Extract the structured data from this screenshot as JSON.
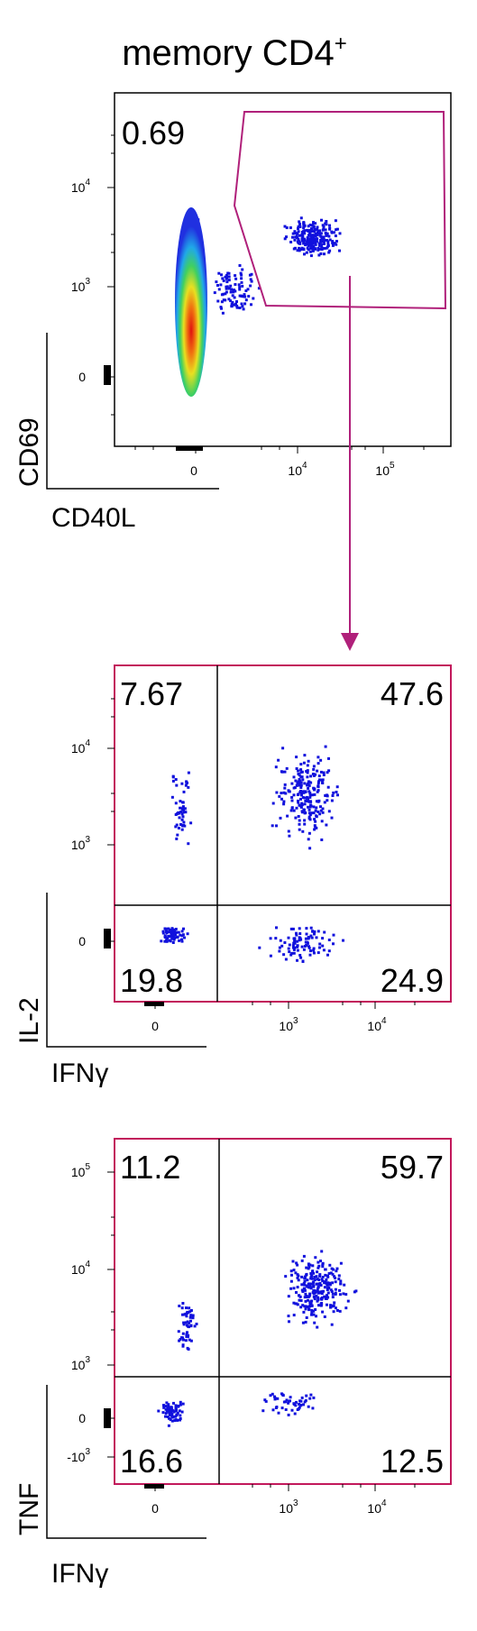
{
  "colors": {
    "frame": "#000000",
    "highlight_frame": "#c2185b",
    "gate": "#b0207a",
    "arrow": "#b0207a",
    "dots": "#1111dd",
    "quad_line": "#000000"
  },
  "title": {
    "main": "memory CD4",
    "superscript": "+"
  },
  "panels": [
    {
      "id": "cd40l-vs-cd69",
      "xlabel": "CD40L",
      "ylabel": "CD69",
      "x_ticks": [
        "0",
        "10",
        "10"
      ],
      "x_tick_exps": [
        "",
        "4",
        "5"
      ],
      "y_ticks": [
        "10",
        "10",
        "0"
      ],
      "y_tick_exps": [
        "4",
        "3",
        ""
      ],
      "gate_percentage": "0.69"
    },
    {
      "id": "ifng-vs-il2",
      "xlabel": "IFNγ",
      "ylabel": "IL-2",
      "x_ticks": [
        "0",
        "10",
        "10"
      ],
      "x_tick_exps": [
        "",
        "3",
        "4"
      ],
      "y_ticks": [
        "10",
        "10",
        "0"
      ],
      "y_tick_exps": [
        "4",
        "3",
        ""
      ],
      "quadrants": {
        "upper_left": "7.67",
        "upper_right": "47.6",
        "lower_left": "19.8",
        "lower_right": "24.9"
      }
    },
    {
      "id": "ifng-vs-tnf",
      "xlabel": "IFNγ",
      "ylabel": "TNF",
      "x_ticks": [
        "0",
        "10",
        "10"
      ],
      "x_tick_exps": [
        "",
        "3",
        "4"
      ],
      "y_ticks": [
        "10",
        "10",
        "10",
        "0",
        "-10"
      ],
      "y_tick_exps": [
        "5",
        "4",
        "3",
        "",
        "3"
      ],
      "quadrants": {
        "upper_left": "11.2",
        "upper_right": "59.7",
        "lower_left": "16.6",
        "lower_right": "12.5"
      }
    }
  ],
  "chart_data": [
    {
      "type": "scatter",
      "title": "memory CD4+",
      "xlabel": "CD40L",
      "ylabel": "CD69",
      "x_scale": "biexponential",
      "y_scale": "biexponential",
      "x_tick_labels": [
        "0",
        "10^4",
        "10^5"
      ],
      "y_tick_labels": [
        "0",
        "10^3",
        "10^4"
      ],
      "gate": {
        "shape": "polygon",
        "percentage": 0.69
      },
      "populations": [
        {
          "name": "",
          "x_center": 0,
          "y_range": [
            0,
            10000
          ],
          "description": "dense CD40L-negative column"
        },
        {
          "name": "",
          "x_range": [
            3000,
            40000
          ],
          "y_range": [
            1000,
            10000
          ],
          "description": "CD40L+ CD69+ gated events"
        }
      ]
    },
    {
      "type": "scatter",
      "xlabel": "IFNγ",
      "ylabel": "IL-2",
      "x_tick_labels": [
        "0",
        "10^3",
        "10^4"
      ],
      "y_tick_labels": [
        "0",
        "10^3",
        "10^4"
      ],
      "quadrant_percentages": {
        "Q1_upper_left": 7.67,
        "Q2_upper_right": 47.6,
        "Q3_lower_right": 24.9,
        "Q4_lower_left": 19.8
      }
    },
    {
      "type": "scatter",
      "xlabel": "IFNγ",
      "ylabel": "TNF",
      "x_tick_labels": [
        "0",
        "10^3",
        "10^4"
      ],
      "y_tick_labels": [
        "-10^3",
        "0",
        "10^3",
        "10^4",
        "10^5"
      ],
      "quadrant_percentages": {
        "Q1_upper_left": 11.2,
        "Q2_upper_right": 59.7,
        "Q3_lower_right": 12.5,
        "Q4_lower_left": 16.6
      }
    }
  ]
}
